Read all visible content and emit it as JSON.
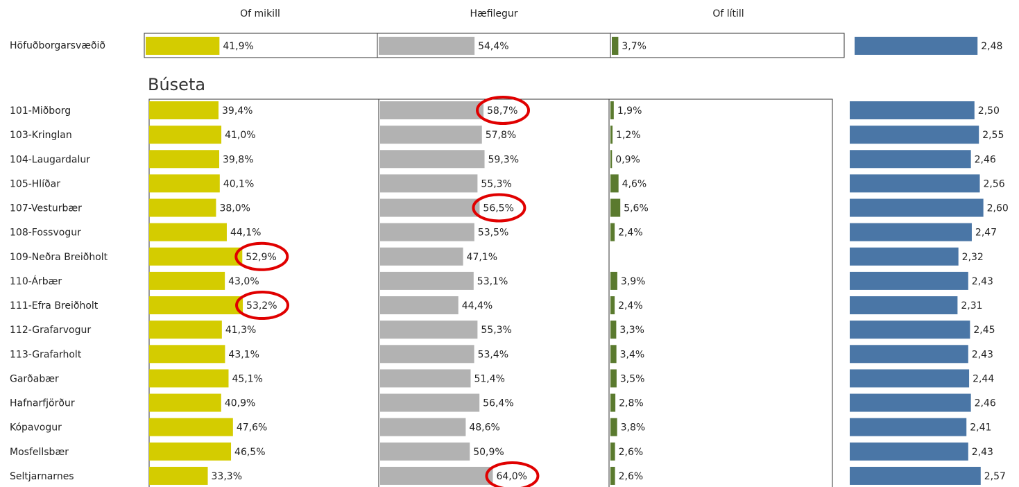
{
  "chart_data": {
    "type": "bar",
    "orientation": "horizontal",
    "total_category": "Höfuðborgarsvæðið",
    "section": "Búseta",
    "categories": [
      "101-Miðborg",
      "103-Kringlan",
      "104-Laugardalur",
      "105-Hlíðar",
      "107-Vesturbær",
      "108-Fossvogur",
      "109-Neðra Breiðholt",
      "110-Árbær",
      "111-Efra Breiðholt",
      "112-Grafarvogur",
      "113-Grafarholt",
      "Garðabær",
      "Hafnarfjörður",
      "Kópavogur",
      "Mosfellsbær",
      "Seltjarnarnes"
    ],
    "series": [
      {
        "name": "Of mikill",
        "color": "#d4cc00",
        "xlim": [
          0,
          130
        ],
        "total": 41.9,
        "total_label": "41,9%",
        "values": [
          39.4,
          41.0,
          39.8,
          40.1,
          38.0,
          44.1,
          52.9,
          43.0,
          53.2,
          41.3,
          43.1,
          45.1,
          40.9,
          47.6,
          46.5,
          33.3
        ],
        "value_labels": [
          "39,4%",
          "41,0%",
          "39,8%",
          "40,1%",
          "38,0%",
          "44,1%",
          "52,9%",
          "43,0%",
          "53,2%",
          "41,3%",
          "43,1%",
          "45,1%",
          "40,9%",
          "47,6%",
          "46,5%",
          "33,3%"
        ]
      },
      {
        "name": "Hæfilegur",
        "color": "#b2b2b2",
        "xlim": [
          0,
          130
        ],
        "total": 54.4,
        "total_label": "54,4%",
        "values": [
          58.7,
          57.8,
          59.3,
          55.3,
          56.5,
          53.5,
          47.1,
          53.1,
          44.4,
          55.3,
          53.4,
          51.4,
          56.4,
          48.6,
          50.9,
          64.0
        ],
        "value_labels": [
          "58,7%",
          "57,8%",
          "59,3%",
          "55,3%",
          "56,5%",
          "53,5%",
          "47,1%",
          "53,1%",
          "44,4%",
          "55,3%",
          "53,4%",
          "51,4%",
          "56,4%",
          "48,6%",
          "50,9%",
          "64,0%"
        ]
      },
      {
        "name": "Of lítill",
        "color": "#5a7a2e",
        "xlim": [
          0,
          130
        ],
        "total": 3.7,
        "total_label": "3,7%",
        "values": [
          1.9,
          1.2,
          0.9,
          4.6,
          5.6,
          2.4,
          null,
          3.9,
          2.4,
          3.3,
          3.4,
          3.5,
          2.8,
          3.8,
          2.6,
          2.6
        ],
        "value_labels": [
          "1,9%",
          "1,2%",
          "0,9%",
          "4,6%",
          "5,6%",
          "2,4%",
          null,
          "3,9%",
          "2,4%",
          "3,3%",
          "3,4%",
          "3,5%",
          "2,8%",
          "3,8%",
          "2,6%",
          "2,6%"
        ]
      },
      {
        "color": "#4a76a6",
        "xlim": [
          1.1,
          3.0
        ],
        "total": 2.48,
        "total_label": "2,48",
        "values": [
          2.5,
          2.55,
          2.46,
          2.56,
          2.6,
          2.47,
          2.32,
          2.43,
          2.31,
          2.45,
          2.43,
          2.44,
          2.46,
          2.41,
          2.43,
          2.57
        ],
        "value_labels": [
          "2,50",
          "2,55",
          "2,46",
          "2,56",
          "2,60",
          "2,47",
          "2,32",
          "2,43",
          "2,31",
          "2,45",
          "2,43",
          "2,44",
          "2,46",
          "2,41",
          "2,43",
          "2,57"
        ]
      }
    ],
    "highlight": [
      [
        1,
        0
      ],
      [
        1,
        4
      ],
      [
        0,
        6
      ],
      [
        0,
        8
      ],
      [
        1,
        15
      ]
    ]
  }
}
